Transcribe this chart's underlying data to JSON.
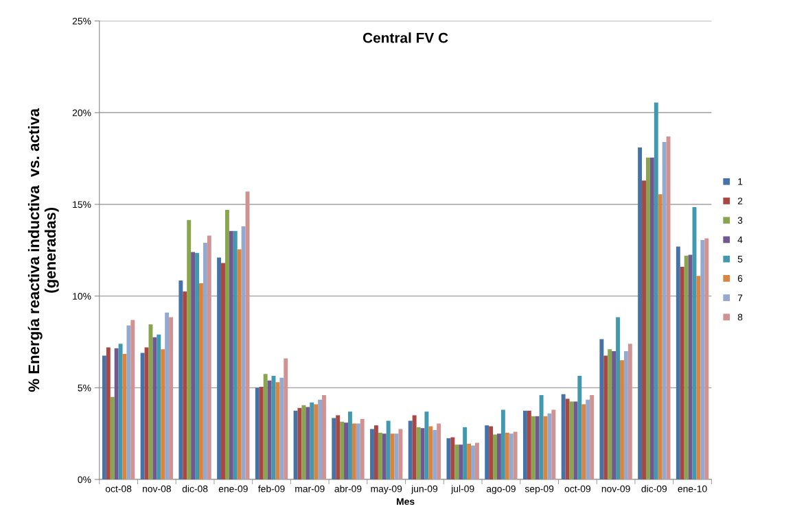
{
  "chart_data": {
    "type": "bar",
    "title": "Central FV C",
    "xlabel": "Mes",
    "ylabel": "% Energía reactiva inductiva  vs. activa\n(generadas)",
    "categories": [
      "oct-08",
      "nov-08",
      "dic-08",
      "ene-09",
      "feb-09",
      "mar-09",
      "abr-09",
      "may-09",
      "jun-09",
      "jul-09",
      "ago-09",
      "sep-09",
      "oct-09",
      "nov-09",
      "dic-09",
      "ene-10"
    ],
    "series": [
      {
        "name": "1",
        "color": "#4572a7",
        "values": [
          6.75,
          6.9,
          10.85,
          12.1,
          5.0,
          3.75,
          3.35,
          2.75,
          3.2,
          2.25,
          2.95,
          3.75,
          4.65,
          7.65,
          18.1,
          12.7
        ]
      },
      {
        "name": "2",
        "color": "#aa4643",
        "values": [
          7.2,
          7.2,
          10.25,
          11.8,
          5.05,
          3.9,
          3.5,
          2.95,
          3.5,
          2.3,
          2.9,
          3.75,
          4.4,
          6.75,
          16.3,
          11.6
        ]
      },
      {
        "name": "3",
        "color": "#89a54e",
        "values": [
          4.5,
          8.45,
          14.15,
          14.7,
          5.75,
          4.05,
          3.15,
          2.55,
          2.85,
          1.9,
          2.45,
          3.45,
          4.25,
          7.1,
          17.55,
          12.2
        ]
      },
      {
        "name": "4",
        "color": "#71588f",
        "values": [
          7.15,
          7.75,
          12.4,
          13.55,
          5.4,
          3.95,
          3.1,
          2.5,
          2.8,
          1.9,
          2.5,
          3.45,
          4.25,
          7.0,
          17.55,
          12.25
        ]
      },
      {
        "name": "5",
        "color": "#4198af",
        "values": [
          7.4,
          7.9,
          12.35,
          13.55,
          5.65,
          4.2,
          3.7,
          3.2,
          3.7,
          2.85,
          3.8,
          4.6,
          5.65,
          8.85,
          20.55,
          14.85
        ]
      },
      {
        "name": "6",
        "color": "#db843d",
        "values": [
          6.85,
          7.1,
          10.7,
          12.55,
          5.3,
          4.1,
          3.05,
          2.5,
          2.9,
          1.95,
          2.55,
          3.45,
          4.1,
          6.5,
          15.55,
          11.1
        ]
      },
      {
        "name": "7",
        "color": "#93a9cf",
        "values": [
          8.4,
          9.1,
          12.9,
          13.8,
          5.55,
          4.35,
          3.05,
          2.5,
          2.7,
          1.85,
          2.5,
          3.6,
          4.35,
          7.0,
          18.4,
          13.05
        ]
      },
      {
        "name": "8",
        "color": "#d19392",
        "values": [
          8.7,
          8.85,
          13.3,
          15.7,
          6.6,
          4.6,
          3.3,
          2.75,
          3.05,
          2.0,
          2.6,
          3.8,
          4.6,
          7.4,
          18.7,
          13.15
        ]
      }
    ],
    "ylim": [
      0,
      25
    ],
    "yticks": [
      {
        "value": 0,
        "label": "0%"
      },
      {
        "value": 5,
        "label": "5%"
      },
      {
        "value": 10,
        "label": "10%"
      },
      {
        "value": 15,
        "label": "15%"
      },
      {
        "value": 20,
        "label": "20%"
      },
      {
        "value": 25,
        "label": "25%"
      }
    ],
    "grid": "y",
    "legend": "right"
  }
}
